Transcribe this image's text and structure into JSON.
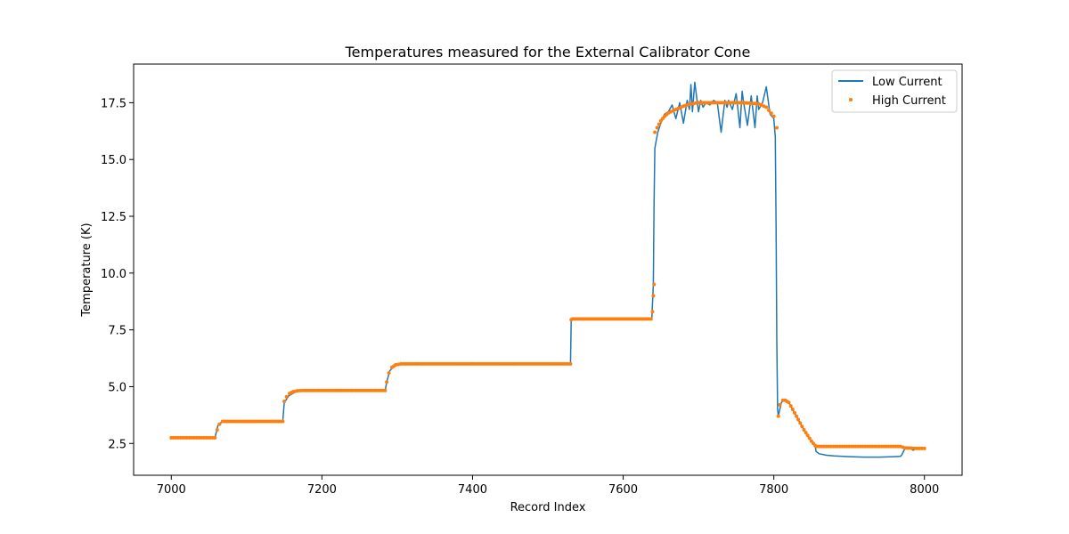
{
  "chart_data": {
    "type": "line",
    "title": "Temperatures measured for the External Calibrator Cone",
    "xlabel": "Record Index",
    "ylabel": "Temperature (K)",
    "xlim": [
      6950,
      8050
    ],
    "ylim": [
      1.1,
      19.2
    ],
    "xticks": [
      7000,
      7200,
      7400,
      7600,
      7800,
      8000
    ],
    "xtick_labels": [
      "7000",
      "7200",
      "7400",
      "7600",
      "7800",
      "8000"
    ],
    "yticks": [
      2.5,
      5.0,
      7.5,
      10.0,
      12.5,
      15.0,
      17.5
    ],
    "ytick_labels": [
      "2.5",
      "5.0",
      "7.5",
      "10.0",
      "12.5",
      "15.0",
      "17.5"
    ],
    "grid": false,
    "legend_position": "top-right",
    "colors": {
      "low": "#1f77b4",
      "high": "#ff7f0e"
    },
    "series": [
      {
        "name": "Low Current",
        "style": "line",
        "x": [
          7000,
          7058,
          7062,
          7068,
          7148,
          7150,
          7156,
          7164,
          7172,
          7284,
          7286,
          7290,
          7296,
          7304,
          7530,
          7531,
          7540,
          7600,
          7638,
          7640,
          7641,
          7642,
          7646,
          7650,
          7655,
          7660,
          7665,
          7670,
          7675,
          7680,
          7685,
          7688,
          7690,
          7692,
          7695,
          7700,
          7703,
          7706,
          7710,
          7715,
          7720,
          7725,
          7730,
          7735,
          7738,
          7740,
          7745,
          7750,
          7755,
          7758,
          7760,
          7765,
          7770,
          7775,
          7778,
          7780,
          7785,
          7790,
          7795,
          7800,
          7802,
          7803,
          7804,
          7805,
          7806,
          7810,
          7815,
          7820,
          7825,
          7830,
          7835,
          7840,
          7845,
          7850,
          7855,
          7856,
          7860,
          7870,
          7880,
          7900,
          7920,
          7940,
          7960,
          7968,
          7970,
          7975,
          7980,
          7985,
          7990,
          8000
        ],
        "y": [
          2.75,
          2.75,
          3.3,
          3.47,
          3.47,
          4.3,
          4.6,
          4.75,
          4.83,
          4.83,
          5.2,
          5.7,
          5.9,
          5.98,
          5.98,
          7.95,
          7.98,
          7.98,
          7.98,
          9.5,
          13.0,
          15.5,
          16.2,
          16.6,
          17.0,
          17.1,
          17.4,
          16.8,
          17.5,
          16.6,
          17.6,
          17.2,
          18.3,
          17.1,
          18.4,
          17.1,
          17.6,
          17.3,
          17.5,
          17.4,
          17.6,
          17.5,
          16.2,
          17.6,
          17.3,
          17.6,
          17.2,
          17.9,
          16.4,
          18.0,
          17.5,
          16.5,
          17.8,
          16.4,
          17.8,
          17.2,
          17.5,
          18.2,
          17.0,
          16.8,
          16.0,
          12.0,
          7.0,
          4.0,
          3.7,
          4.3,
          4.45,
          4.3,
          4.0,
          3.7,
          3.4,
          3.1,
          2.85,
          2.6,
          2.4,
          2.15,
          2.05,
          1.98,
          1.95,
          1.92,
          1.9,
          1.9,
          1.92,
          1.93,
          2.0,
          2.35,
          2.3,
          2.2,
          2.28,
          2.25
        ]
      },
      {
        "name": "High Current",
        "style": "scatter",
        "x": [
          7000,
          7058,
          7061,
          7064,
          7068,
          7148,
          7150,
          7153,
          7157,
          7162,
          7168,
          7175,
          7284,
          7286,
          7289,
          7293,
          7298,
          7305,
          7530,
          7531,
          7533,
          7545,
          7637,
          7639,
          7640,
          7641,
          7642,
          7645,
          7650,
          7655,
          7660,
          7670,
          7680,
          7690,
          7700,
          7720,
          7740,
          7760,
          7780,
          7790,
          7800,
          7804,
          7806,
          7808,
          7812,
          7815,
          7820,
          7825,
          7830,
          7835,
          7840,
          7845,
          7850,
          7855,
          7857,
          7860,
          7900,
          7940,
          7968,
          7975,
          7980,
          7990,
          8000
        ],
        "y": [
          2.75,
          2.75,
          3.1,
          3.35,
          3.47,
          3.47,
          4.35,
          4.55,
          4.7,
          4.78,
          4.82,
          4.83,
          4.83,
          5.2,
          5.6,
          5.85,
          5.96,
          6.0,
          6.0,
          7.95,
          7.98,
          7.98,
          7.98,
          8.3,
          9.0,
          9.5,
          16.2,
          16.4,
          16.7,
          16.9,
          17.05,
          17.2,
          17.35,
          17.45,
          17.5,
          17.5,
          17.5,
          17.5,
          17.45,
          17.3,
          16.9,
          16.4,
          3.7,
          4.2,
          4.4,
          4.4,
          4.3,
          4.0,
          3.7,
          3.4,
          3.1,
          2.85,
          2.6,
          2.4,
          2.37,
          2.37,
          2.37,
          2.37,
          2.37,
          2.3,
          2.3,
          2.28,
          2.28
        ]
      }
    ]
  }
}
